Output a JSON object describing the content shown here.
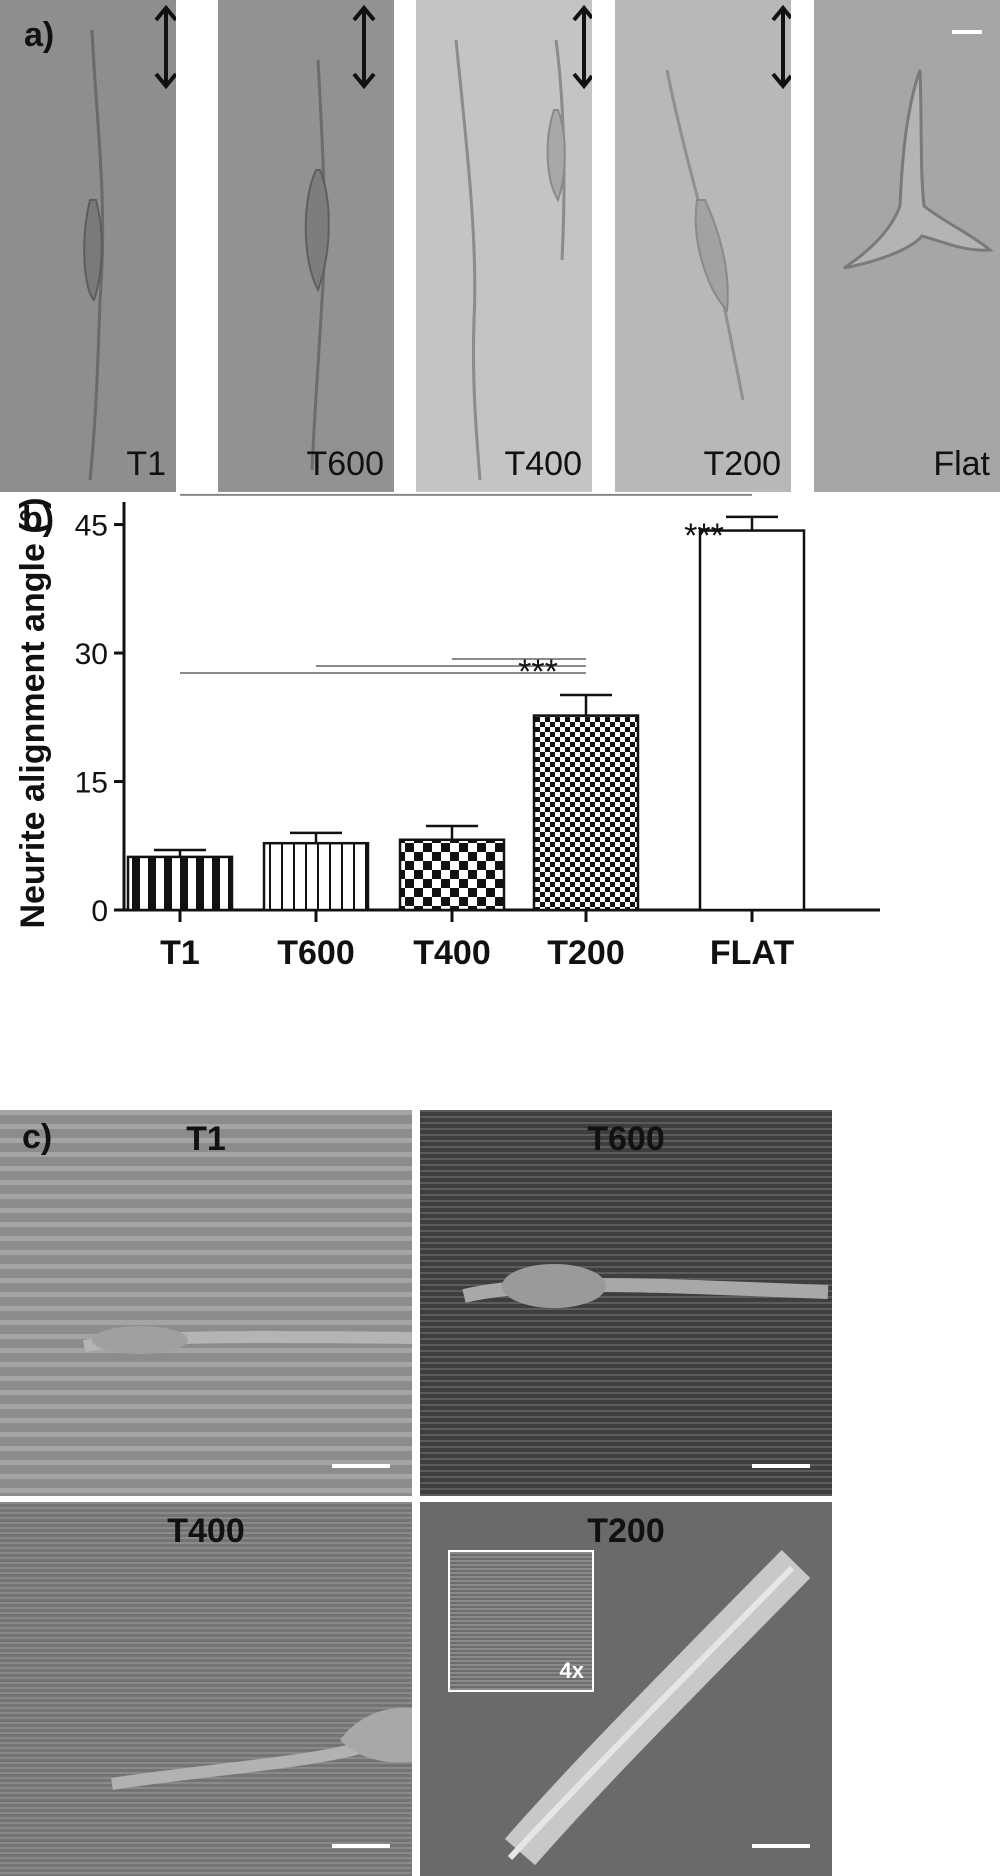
{
  "panel_a": {
    "label": "a)",
    "images": [
      {
        "label": "T1",
        "tone": "#8e8e8e"
      },
      {
        "label": "T600",
        "tone": "#929292"
      },
      {
        "label": "T400",
        "tone": "#c4c4c4"
      },
      {
        "label": "T200",
        "tone": "#b8b8b8"
      },
      {
        "label": "Flat",
        "tone": "#a6a6a6"
      }
    ]
  },
  "panel_b": {
    "label": "b)"
  },
  "chart_data": {
    "type": "bar",
    "categories": [
      "T1",
      "T600",
      "T400",
      "T200",
      "FLAT"
    ],
    "values": [
      6.2,
      7.8,
      8.2,
      22.7,
      44.3
    ],
    "errors": [
      0.8,
      1.2,
      1.6,
      2.4,
      1.6
    ],
    "patterns": [
      "thick-vertical-stripes",
      "thin-vertical-stripes",
      "checker-large",
      "checker-small",
      "solid-white"
    ],
    "title": "",
    "xlabel": "",
    "ylabel": "Neurite alignment angle (°)",
    "ylim": [
      0,
      46
    ],
    "yticks": [
      0,
      15,
      30,
      45
    ],
    "significance": [
      {
        "text": "***",
        "to": "T200",
        "from": [
          "T1",
          "T600",
          "T400"
        ]
      },
      {
        "text": "***",
        "to": "FLAT",
        "from": [
          "T1",
          "T600",
          "T400",
          "T200"
        ]
      }
    ]
  },
  "panel_c": {
    "label": "c)",
    "images": [
      {
        "title": "T1",
        "tone": "#8c8c8c"
      },
      {
        "title": "T600",
        "tone": "#4a4a4a"
      },
      {
        "title": "T400",
        "tone": "#7c7c7c"
      },
      {
        "title": "T200",
        "tone": "#6a6a6a",
        "inset_label": "4x"
      }
    ]
  }
}
